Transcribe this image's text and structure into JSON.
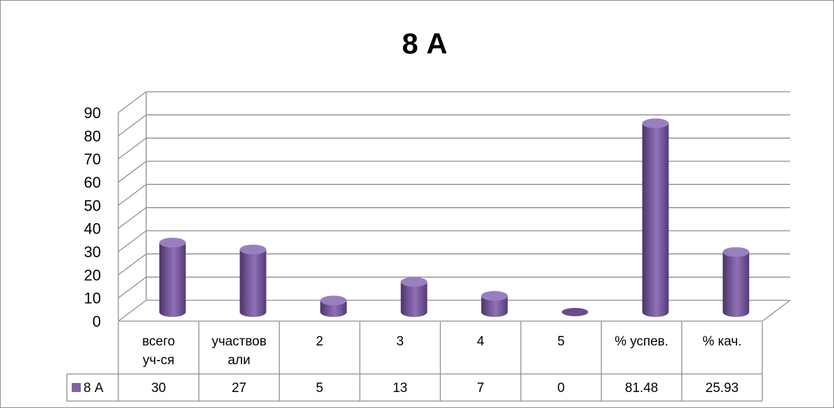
{
  "chart_data": {
    "type": "bar",
    "title": "8 А",
    "categories": [
      [
        "всего",
        "уч-ся"
      ],
      [
        "участвов",
        "али"
      ],
      [
        "2"
      ],
      [
        "3"
      ],
      [
        "4"
      ],
      [
        "5"
      ],
      [
        "% успев."
      ],
      [
        "% кач."
      ]
    ],
    "series": [
      {
        "name": "8 А",
        "values": [
          30,
          27,
          5,
          13,
          7,
          0,
          81.48,
          25.93
        ],
        "value_labels": [
          "30",
          "27",
          "5",
          "13",
          "7",
          "0",
          "81.48",
          "25.93"
        ],
        "color": "#8064a2"
      }
    ],
    "yticks": [
      "0",
      "10",
      "20",
      "30",
      "40",
      "50",
      "60",
      "70",
      "80",
      "90"
    ],
    "ylim": [
      0,
      90
    ],
    "grid": true,
    "legend": "data-table"
  }
}
